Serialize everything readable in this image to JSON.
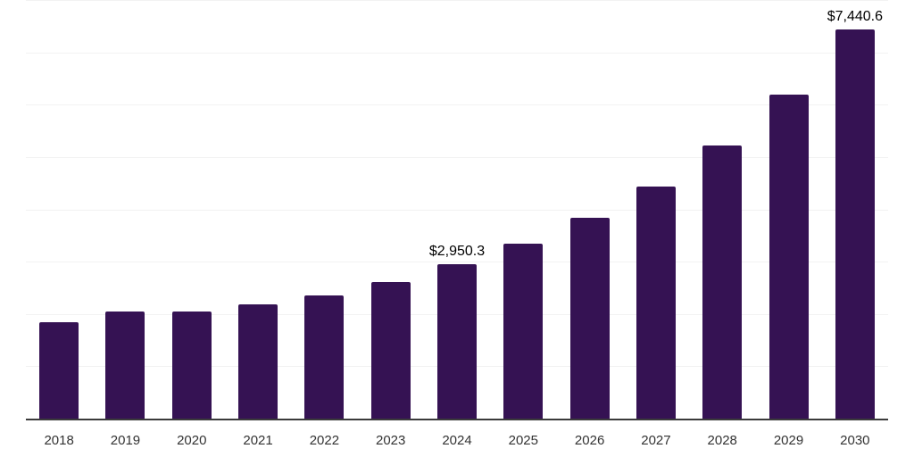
{
  "chart_data": {
    "type": "bar",
    "title": "",
    "xlabel": "",
    "ylabel": "",
    "categories": [
      "2018",
      "2019",
      "2020",
      "2021",
      "2022",
      "2023",
      "2024",
      "2025",
      "2026",
      "2027",
      "2028",
      "2029",
      "2030"
    ],
    "values": [
      1850,
      2040,
      2050,
      2190,
      2360,
      2610,
      2950.3,
      3340,
      3840,
      4440,
      5220,
      6200,
      7440.6
    ],
    "data_labels": [
      {
        "category": "2024",
        "text": "$2,950.3"
      },
      {
        "category": "2030",
        "text": "$7,440.6"
      }
    ],
    "ylim": [
      0,
      8000
    ],
    "grid": true,
    "grid_step": 1000,
    "legend_position": "none",
    "colors": {
      "bar": "#351253",
      "axis_line": "#3b3b3b",
      "gridline": "#f2f2f2",
      "tick_label": "#333333",
      "data_label": "#000000",
      "background": "#ffffff"
    }
  }
}
